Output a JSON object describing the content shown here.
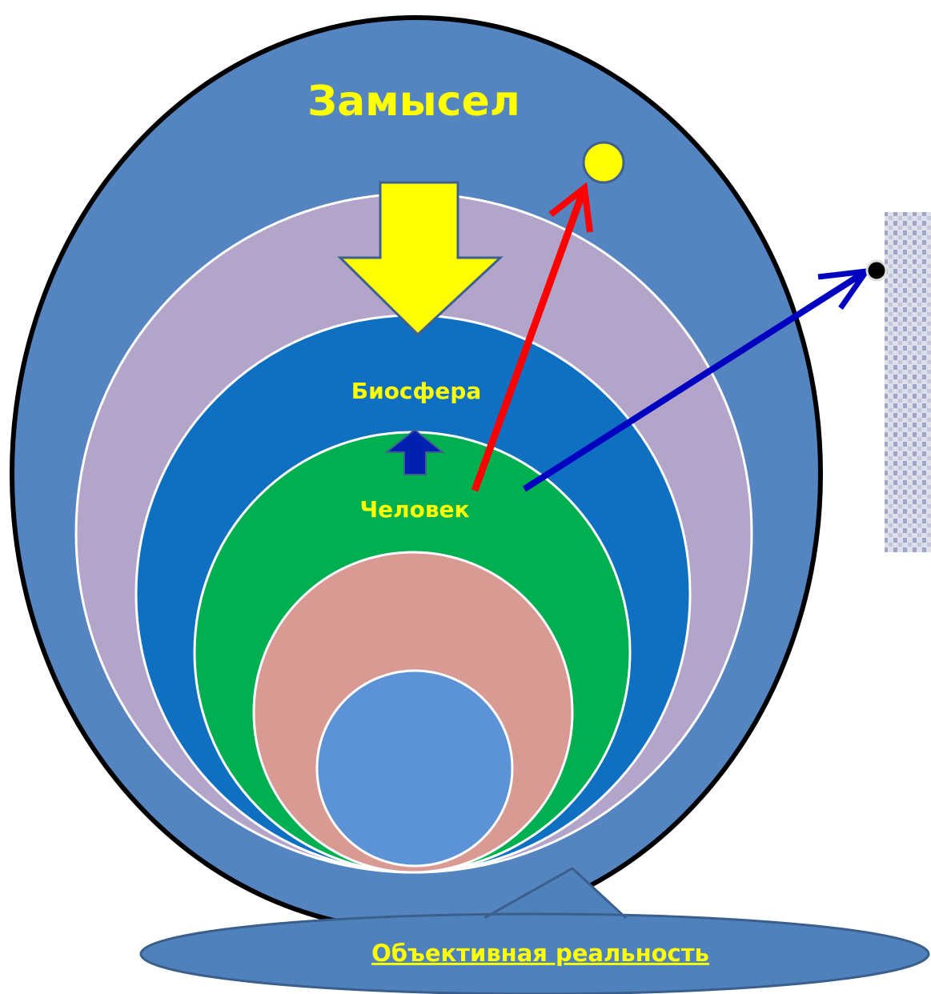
{
  "title": "Замысел",
  "levels": {
    "biosphere": "Биосфера",
    "human": "Человек"
  },
  "callout": "Объективная реальность"
}
